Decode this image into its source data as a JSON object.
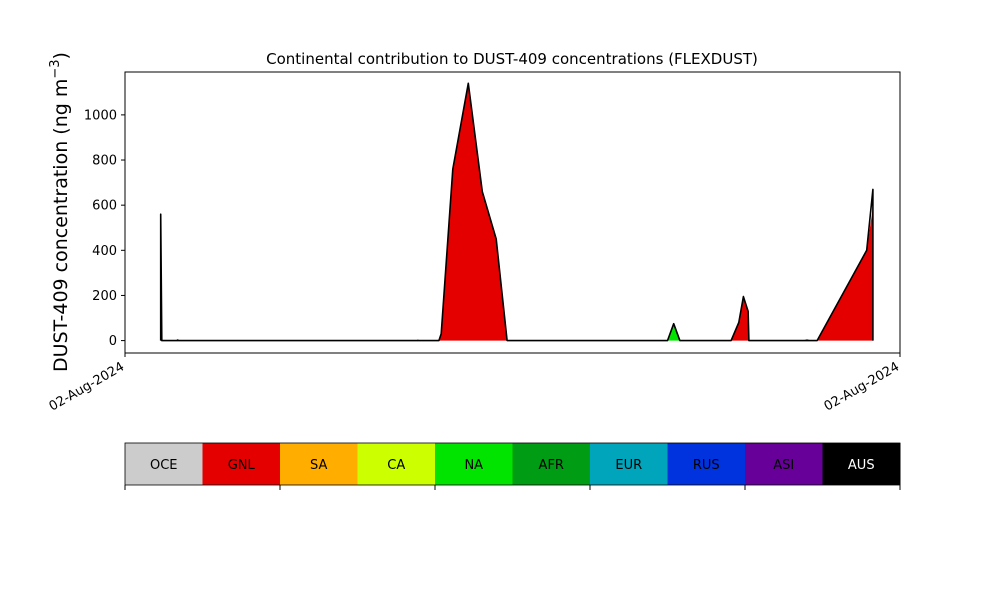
{
  "chart_data": {
    "type": "area",
    "title": "Continental contribution to DUST-409 concentrations (FLEXDUST)",
    "ylabel": "DUST-409 concentration (ng m",
    "ylabel_superscript": "−3",
    "ylabel_close": ")",
    "xlabel": "",
    "xlim": [
      0,
      100
    ],
    "ylim": [
      -55,
      1190
    ],
    "yticks": [
      0,
      200,
      400,
      600,
      800,
      1000
    ],
    "xtick_labels": [
      "02-Aug-2024",
      "02-Aug-2024"
    ],
    "grid": false,
    "series": [
      {
        "name": "GNL",
        "color": "#e50000",
        "points": [
          [
            4.6,
            0
          ],
          [
            4.6,
            560
          ],
          [
            4.75,
            0
          ],
          [
            40.5,
            0
          ],
          [
            40.8,
            30
          ],
          [
            42.3,
            760
          ],
          [
            44.3,
            1140
          ],
          [
            46.1,
            660
          ],
          [
            47.9,
            450
          ],
          [
            49.3,
            0
          ],
          [
            78.2,
            0
          ],
          [
            79.2,
            80
          ],
          [
            79.8,
            195
          ],
          [
            80.4,
            130
          ],
          [
            80.5,
            0
          ],
          [
            89.3,
            0
          ],
          [
            95.7,
            400
          ],
          [
            96.5,
            590
          ],
          [
            96.5,
            670
          ],
          [
            96.5,
            0
          ]
        ]
      },
      {
        "name": "NA",
        "color": "#00e400",
        "points": [
          [
            70.0,
            0
          ],
          [
            70.8,
            75
          ],
          [
            71.6,
            0
          ]
        ]
      },
      {
        "name": "RUS",
        "color": "#0033dd",
        "points": [
          [
            4.6,
            0
          ],
          [
            4.6,
            300
          ],
          [
            4.7,
            0
          ],
          [
            6.5,
            0
          ],
          [
            6.8,
            7
          ],
          [
            7.1,
            0
          ],
          [
            37.5,
            0
          ],
          [
            37.8,
            5
          ],
          [
            38.1,
            0
          ],
          [
            87.4,
            0
          ],
          [
            88.0,
            6
          ],
          [
            88.6,
            0
          ]
        ]
      }
    ],
    "total_line": [
      [
        4.6,
        0
      ],
      [
        4.6,
        560
      ],
      [
        4.75,
        0
      ],
      [
        40.5,
        0
      ],
      [
        40.8,
        30
      ],
      [
        42.3,
        760
      ],
      [
        44.3,
        1140
      ],
      [
        46.1,
        660
      ],
      [
        47.9,
        450
      ],
      [
        49.3,
        0
      ],
      [
        70.0,
        0
      ],
      [
        70.8,
        75
      ],
      [
        71.6,
        0
      ],
      [
        78.2,
        0
      ],
      [
        79.2,
        80
      ],
      [
        79.8,
        195
      ],
      [
        80.4,
        130
      ],
      [
        80.5,
        0
      ],
      [
        89.3,
        0
      ],
      [
        95.7,
        400
      ],
      [
        96.5,
        670
      ],
      [
        96.5,
        0
      ]
    ],
    "legend": {
      "placement": "bottom colorbar",
      "labels": [
        "OCE",
        "GNL",
        "SA",
        "CA",
        "NA",
        "AFR",
        "EUR",
        "RUS",
        "ASI",
        "AUS"
      ],
      "colors": [
        "#cccccc",
        "#e50000",
        "#ffae00",
        "#ccff00",
        "#00e400",
        "#009c14",
        "#00a5bb",
        "#0033dd",
        "#660099",
        "#000000"
      ],
      "label_colors": [
        "#000000",
        "#000000",
        "#000000",
        "#000000",
        "#000000",
        "#000000",
        "#000000",
        "#000000",
        "#000000",
        "#ffffff"
      ]
    }
  }
}
